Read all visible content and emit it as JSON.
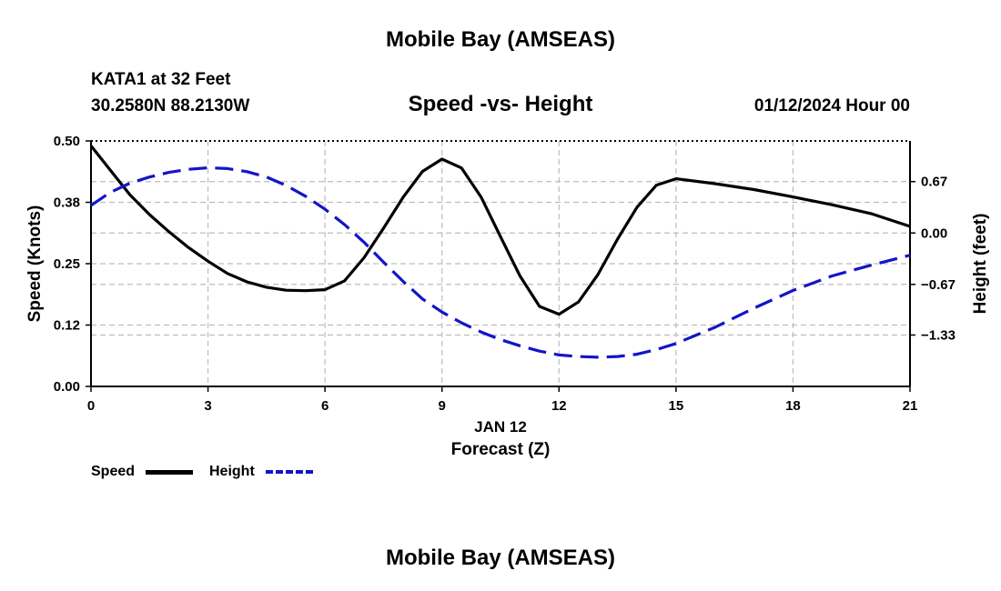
{
  "header": {
    "title": "Mobile Bay (AMSEAS)",
    "station": "KATA1 at 32 Feet",
    "coords": "30.2580N  88.2130W",
    "chart_title": "Speed -vs- Height",
    "datetime": "01/12/2024 Hour 00"
  },
  "legend": {
    "speed_label": "Speed",
    "height_label": "Height"
  },
  "footer": {
    "title": "Mobile Bay (AMSEAS)"
  },
  "colors": {
    "speed": "#000000",
    "height": "#1414c8",
    "grid": "#bdbdbd"
  },
  "chart_data": {
    "type": "line",
    "title": "Speed -vs- Height",
    "xlabel": "Forecast (Z)",
    "xlabel_date": "JAN 12",
    "ylabel_left": "Speed (Knots)",
    "ylabel_right": "Height (feet)",
    "xlim": [
      0,
      21
    ],
    "ylim_left": [
      0,
      0.5
    ],
    "ylim_right": [
      -2.0,
      1.2
    ],
    "x_ticks": [
      0,
      3,
      6,
      9,
      12,
      15,
      18,
      21
    ],
    "x_tick_labels": [
      "0",
      "3",
      "6",
      "9",
      "12",
      "15",
      "18",
      "21"
    ],
    "y_left_ticks": [
      0,
      0.125,
      0.25,
      0.375,
      0.5
    ],
    "y_left_tick_labels": [
      "0.00",
      "0.12",
      "0.25",
      "0.38",
      "0.50"
    ],
    "y_right_ticks": [
      0.67,
      0,
      -0.67,
      -1.33
    ],
    "y_right_tick_labels": [
      "0.67",
      "0.00",
      "−0.67",
      "−1.33"
    ],
    "grid": true,
    "series": [
      {
        "name": "Speed",
        "axis": "left",
        "style": "solid",
        "x": [
          0,
          0.5,
          1,
          1.5,
          2,
          2.5,
          3,
          3.5,
          4,
          4.5,
          5,
          5.5,
          6,
          6.5,
          7,
          7.5,
          8,
          8.5,
          9,
          9.5,
          10,
          10.5,
          11,
          11.5,
          12,
          12.5,
          13,
          13.5,
          14,
          14.5,
          15,
          16,
          17,
          18,
          19,
          20,
          21
        ],
        "values": [
          0.49,
          0.44,
          0.39,
          0.35,
          0.315,
          0.283,
          0.255,
          0.23,
          0.213,
          0.202,
          0.196,
          0.195,
          0.197,
          0.215,
          0.262,
          0.322,
          0.385,
          0.438,
          0.463,
          0.445,
          0.386,
          0.305,
          0.225,
          0.163,
          0.147,
          0.172,
          0.228,
          0.3,
          0.365,
          0.41,
          0.423,
          0.413,
          0.401,
          0.386,
          0.37,
          0.352,
          0.326
        ]
      },
      {
        "name": "Height",
        "axis": "right",
        "style": "dashed",
        "x": [
          0,
          0.5,
          1,
          1.5,
          2,
          2.5,
          3,
          3.5,
          4,
          4.5,
          5,
          5.5,
          6,
          6.5,
          7,
          7.5,
          8,
          8.5,
          9,
          9.5,
          10,
          10.5,
          11,
          11.5,
          12,
          12.5,
          13,
          13.5,
          14,
          14.5,
          15,
          16,
          17,
          18,
          19,
          20,
          21
        ],
        "values": [
          0.36,
          0.53,
          0.65,
          0.73,
          0.79,
          0.83,
          0.85,
          0.84,
          0.8,
          0.73,
          0.62,
          0.48,
          0.31,
          0.11,
          -0.12,
          -0.38,
          -0.63,
          -0.86,
          -1.03,
          -1.17,
          -1.29,
          -1.39,
          -1.47,
          -1.54,
          -1.59,
          -1.61,
          -1.62,
          -1.61,
          -1.58,
          -1.52,
          -1.44,
          -1.23,
          -0.98,
          -0.75,
          -0.56,
          -0.42,
          -0.29
        ]
      }
    ]
  }
}
